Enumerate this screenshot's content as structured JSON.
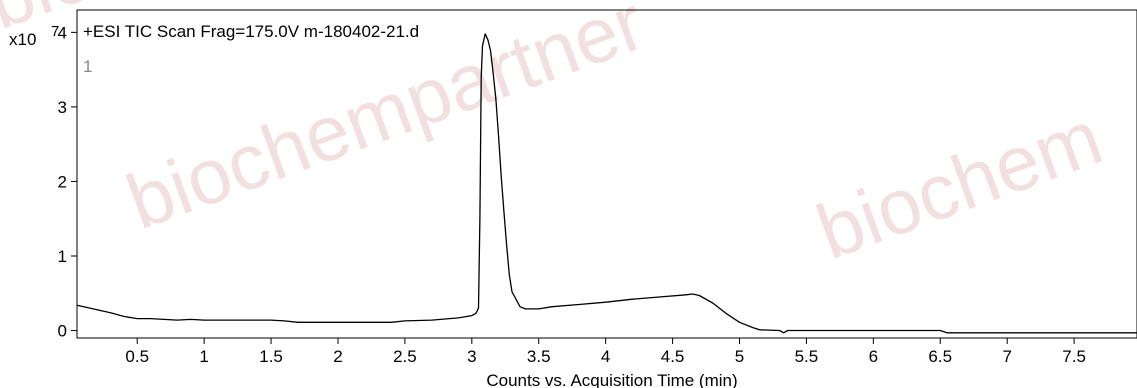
{
  "chart_data": {
    "type": "line",
    "title": "+ESI TIC Scan Frag=175.0V m-180402-21.d",
    "panel_index": "1",
    "y_multiplier": "x10",
    "y_multiplier_exp": "7",
    "xlabel": "Counts vs. Acquisition Time (min)",
    "ylabel": "",
    "xlim": [
      0.05,
      7.97
    ],
    "ylim": [
      -0.1,
      4.3
    ],
    "x_ticks": [
      0.5,
      1,
      1.5,
      2,
      2.5,
      3,
      3.5,
      4,
      4.5,
      5,
      5.5,
      6,
      6.5,
      7,
      7.5
    ],
    "y_ticks": [
      0,
      1,
      2,
      3,
      4
    ],
    "series": [
      {
        "color": "#000000",
        "points": [
          [
            0.05,
            0.34
          ],
          [
            0.1,
            0.32
          ],
          [
            0.15,
            0.3
          ],
          [
            0.2,
            0.28
          ],
          [
            0.3,
            0.24
          ],
          [
            0.4,
            0.19
          ],
          [
            0.5,
            0.16
          ],
          [
            0.6,
            0.16
          ],
          [
            0.7,
            0.15
          ],
          [
            0.8,
            0.14
          ],
          [
            0.9,
            0.15
          ],
          [
            1.0,
            0.14
          ],
          [
            1.1,
            0.14
          ],
          [
            1.2,
            0.14
          ],
          [
            1.5,
            0.14
          ],
          [
            1.6,
            0.13
          ],
          [
            1.7,
            0.11
          ],
          [
            2.0,
            0.11
          ],
          [
            2.4,
            0.11
          ],
          [
            2.5,
            0.13
          ],
          [
            2.7,
            0.14
          ],
          [
            2.9,
            0.17
          ],
          [
            3.0,
            0.2
          ],
          [
            3.03,
            0.23
          ],
          [
            3.05,
            0.3
          ],
          [
            3.06,
            1.5
          ],
          [
            3.07,
            3.4
          ],
          [
            3.08,
            3.82
          ],
          [
            3.1,
            3.98
          ],
          [
            3.12,
            3.9
          ],
          [
            3.14,
            3.75
          ],
          [
            3.16,
            3.45
          ],
          [
            3.18,
            3.1
          ],
          [
            3.2,
            2.6
          ],
          [
            3.22,
            2.05
          ],
          [
            3.24,
            1.6
          ],
          [
            3.26,
            1.15
          ],
          [
            3.28,
            0.75
          ],
          [
            3.3,
            0.52
          ],
          [
            3.33,
            0.42
          ],
          [
            3.36,
            0.32
          ],
          [
            3.4,
            0.29
          ],
          [
            3.5,
            0.29
          ],
          [
            3.6,
            0.32
          ],
          [
            3.8,
            0.35
          ],
          [
            4.0,
            0.38
          ],
          [
            4.2,
            0.42
          ],
          [
            4.4,
            0.45
          ],
          [
            4.6,
            0.48
          ],
          [
            4.65,
            0.49
          ],
          [
            4.7,
            0.47
          ],
          [
            4.8,
            0.37
          ],
          [
            4.9,
            0.23
          ],
          [
            5.0,
            0.11
          ],
          [
            5.1,
            0.04
          ],
          [
            5.15,
            0.01
          ],
          [
            5.3,
            0.0
          ],
          [
            5.33,
            -0.03
          ],
          [
            5.36,
            0.0
          ],
          [
            5.5,
            0.0
          ],
          [
            6.2,
            0.0
          ],
          [
            6.5,
            0.0
          ],
          [
            6.55,
            -0.03
          ],
          [
            7.0,
            -0.03
          ],
          [
            7.97,
            -0.03
          ]
        ]
      }
    ],
    "grid": false,
    "legend": "none"
  },
  "watermarks": [
    "biochempartner",
    "biochem",
    "biochem"
  ]
}
